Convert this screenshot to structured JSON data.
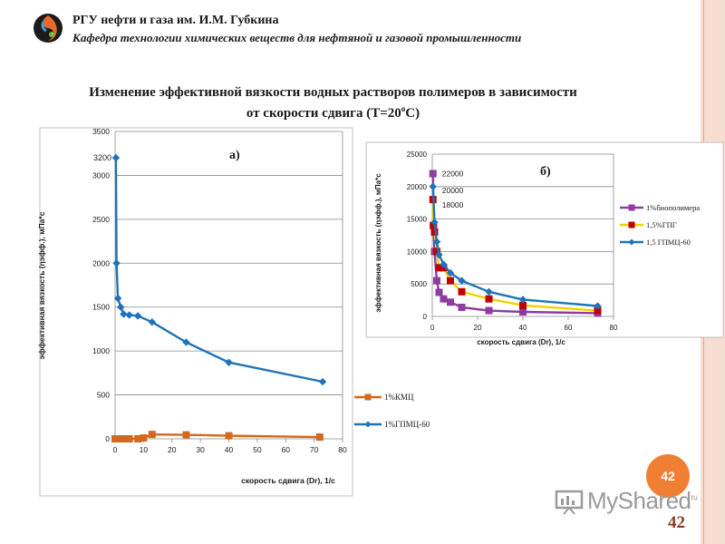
{
  "header": {
    "title": "РГУ нефти и газа им. И.М. Губкина",
    "subtitle": "Кафедра технологии химических веществ для нефтяной и газовой промышленности"
  },
  "slide": {
    "title_line1": "Изменение эффективной вязкости водных растворов полимеров в зависимости",
    "title_line2_pre": "от скорости сдвига (Т=20",
    "title_line2_sup": "о",
    "title_line2_post": "С)"
  },
  "badge": "42",
  "page_number": "42",
  "watermark": {
    "text": "MyShared",
    "superscript": "ru"
  },
  "chart_data": [
    {
      "type": "line",
      "panel_label": "а)",
      "xlabel": "скорость сдвига (Dr), 1/с",
      "ylabel": "эффективная вязкость (ηэфф.), мПа*с",
      "xlim": [
        0,
        80
      ],
      "ylim": [
        0,
        3500
      ],
      "xticks": [
        0,
        10,
        20,
        30,
        40,
        50,
        60,
        70,
        80
      ],
      "yticks": [
        0,
        500,
        1000,
        1500,
        2000,
        2500,
        3000,
        3500
      ],
      "grid": "horizontal",
      "legend_position": "right",
      "annotations": [
        {
          "text": "3200",
          "x": 0,
          "y": 3200
        }
      ],
      "series": [
        {
          "name": "1%КМЦ",
          "color": "#d2691e",
          "marker": "square",
          "x": [
            0,
            0.5,
            1,
            2,
            3,
            5,
            8,
            10,
            13,
            25,
            40,
            72
          ],
          "y": [
            0,
            0,
            0,
            0,
            0,
            0,
            0,
            10,
            50,
            45,
            35,
            20
          ]
        },
        {
          "name": "1%ГПМЦ-60",
          "color": "#1f73b8",
          "marker": "diamond",
          "x": [
            0.3,
            0.5,
            1,
            2,
            3,
            5,
            8,
            13,
            25,
            40,
            73
          ],
          "y": [
            3200,
            2000,
            1600,
            1500,
            1420,
            1410,
            1400,
            1330,
            1100,
            870,
            650
          ]
        }
      ]
    },
    {
      "type": "line",
      "panel_label": "б)",
      "xlabel": "скорость сдвига (Dr), 1/с",
      "ylabel": "эффективная вязкость (ηэфф.), мПа*с",
      "xlim": [
        0,
        80
      ],
      "ylim": [
        0,
        25000
      ],
      "xticks": [
        0,
        20,
        40,
        60,
        80
      ],
      "yticks": [
        0,
        5000,
        10000,
        15000,
        20000,
        25000
      ],
      "grid": "horizontal",
      "legend_position": "right",
      "annotations": [
        {
          "text": "22000",
          "x": 0.3,
          "y": 22000
        },
        {
          "text": "20000",
          "x": 0.3,
          "y": 20000
        },
        {
          "text": "18000",
          "x": 0.3,
          "y": 18000
        }
      ],
      "series": [
        {
          "name": "1%биополимера",
          "color": "#8e3c9f",
          "marker": "square",
          "x": [
            0.3,
            0.5,
            1,
            2,
            3,
            5,
            8,
            13,
            25,
            40,
            73
          ],
          "y": [
            22000,
            14000,
            10000,
            5500,
            3700,
            2700,
            2200,
            1400,
            900,
            700,
            500
          ]
        },
        {
          "name": "1,5%ГПГ",
          "color": "#f5d000",
          "marker": "square",
          "marker_color": "#c00000",
          "x": [
            0.3,
            0.5,
            1,
            2,
            3,
            5,
            8,
            13,
            25,
            40,
            73
          ],
          "y": [
            18000,
            14000,
            13000,
            10000,
            7500,
            7500,
            5500,
            3800,
            2700,
            1700,
            900
          ]
        },
        {
          "name": "1,5 ГПМЦ-60",
          "color": "#1f73b8",
          "marker": "diamond",
          "x": [
            0.3,
            1,
            2,
            3,
            5,
            8,
            13,
            25,
            40,
            73
          ],
          "y": [
            20000,
            14500,
            11500,
            9500,
            8000,
            6700,
            5500,
            3800,
            2600,
            1600
          ]
        }
      ]
    }
  ]
}
